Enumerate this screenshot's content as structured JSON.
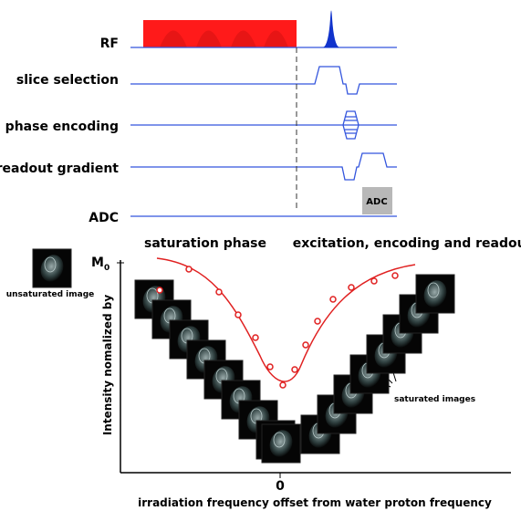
{
  "sequence": {
    "rows": [
      "RF",
      "slice selection",
      "phase encoding",
      "readout gradient",
      "ADC"
    ],
    "adc_box": "ADC"
  },
  "phases": {
    "saturation": "saturation phase",
    "excitation": "excitation, encoding and readout"
  },
  "plot": {
    "y_axis_label": "Intensity nomalized by",
    "m0": {
      "base": "M",
      "sub": "0"
    },
    "x_tick": "0",
    "x_axis_label": "irradiation frequency offset from water proton frequency",
    "unsaturated": "unsaturated image",
    "saturated": "saturated images"
  }
}
